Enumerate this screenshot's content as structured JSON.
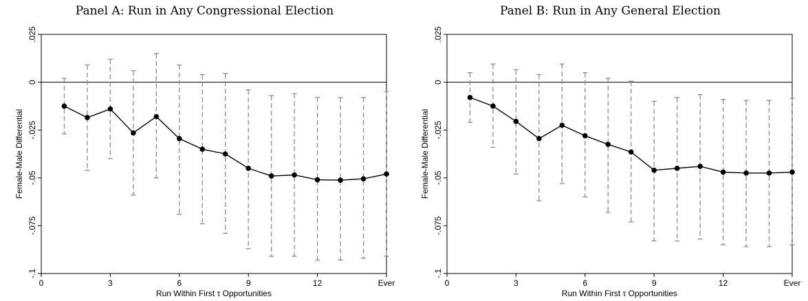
{
  "chart_data": [
    {
      "type": "line",
      "title": "Panel A: Run in Any Congressional Election",
      "xlabel": "Run Within First τ Opportunities",
      "ylabel": "Female-Male Differential",
      "xlim": [
        0,
        15
      ],
      "ylim": [
        -0.1,
        0.025
      ],
      "xticks": [
        0,
        3,
        6,
        9,
        12,
        15
      ],
      "xtick_labels": [
        "0",
        "3",
        "6",
        "9",
        "12",
        "Ever"
      ],
      "yticks": [
        0.025,
        0,
        -0.025,
        -0.05,
        -0.075,
        -0.1
      ],
      "ytick_labels": [
        ".025",
        "0",
        "-.025",
        "-.05",
        "-.075",
        "-.1"
      ],
      "reference_line": 0,
      "grid": false,
      "series": [
        {
          "x": [
            1,
            2,
            3,
            4,
            5,
            6,
            7,
            8,
            9,
            10,
            11,
            12,
            13,
            14,
            15
          ],
          "values": [
            -0.0125,
            -0.0185,
            -0.014,
            -0.0265,
            -0.018,
            -0.0295,
            -0.035,
            -0.0375,
            -0.045,
            -0.049,
            -0.0485,
            -0.051,
            -0.0512,
            -0.0505,
            -0.048
          ],
          "ci_upper": [
            0.002,
            0.009,
            0.012,
            0.006,
            0.015,
            0.009,
            0.004,
            0.0045,
            -0.004,
            -0.007,
            -0.006,
            -0.008,
            -0.008,
            -0.008,
            -0.005
          ],
          "ci_lower": [
            -0.027,
            -0.046,
            -0.04,
            -0.059,
            -0.05,
            -0.069,
            -0.074,
            -0.079,
            -0.087,
            -0.091,
            -0.091,
            -0.093,
            -0.093,
            -0.092,
            -0.091
          ]
        }
      ]
    },
    {
      "type": "line",
      "title": "Panel B: Run in Any General Election",
      "xlabel": "Run Within First τ Opportunities",
      "ylabel": "Female-Male Differential",
      "xlim": [
        0,
        15
      ],
      "ylim": [
        -0.1,
        0.025
      ],
      "xticks": [
        0,
        3,
        6,
        9,
        12,
        15
      ],
      "xtick_labels": [
        "0",
        "3",
        "6",
        "9",
        "12",
        "Ever"
      ],
      "yticks": [
        0.025,
        0,
        -0.025,
        -0.05,
        -0.075,
        -0.1
      ],
      "ytick_labels": [
        ".025",
        "0",
        "-.025",
        "-.05",
        "-.075",
        "-.1"
      ],
      "reference_line": 0,
      "grid": false,
      "series": [
        {
          "x": [
            1,
            2,
            3,
            4,
            5,
            6,
            7,
            8,
            9,
            10,
            11,
            12,
            13,
            14,
            15
          ],
          "values": [
            -0.008,
            -0.0125,
            -0.0205,
            -0.0295,
            -0.0225,
            -0.028,
            -0.0325,
            -0.0365,
            -0.046,
            -0.045,
            -0.044,
            -0.047,
            -0.0475,
            -0.0475,
            -0.047
          ],
          "ci_upper": [
            0.005,
            0.0095,
            0.0065,
            0.004,
            0.0095,
            0.005,
            0.002,
            0.0005,
            -0.01,
            -0.008,
            -0.0065,
            -0.009,
            -0.0095,
            -0.0095,
            -0.0085
          ],
          "ci_lower": [
            -0.021,
            -0.034,
            -0.048,
            -0.062,
            -0.053,
            -0.06,
            -0.068,
            -0.073,
            -0.083,
            -0.083,
            -0.082,
            -0.085,
            -0.086,
            -0.086,
            -0.085
          ]
        }
      ]
    }
  ]
}
